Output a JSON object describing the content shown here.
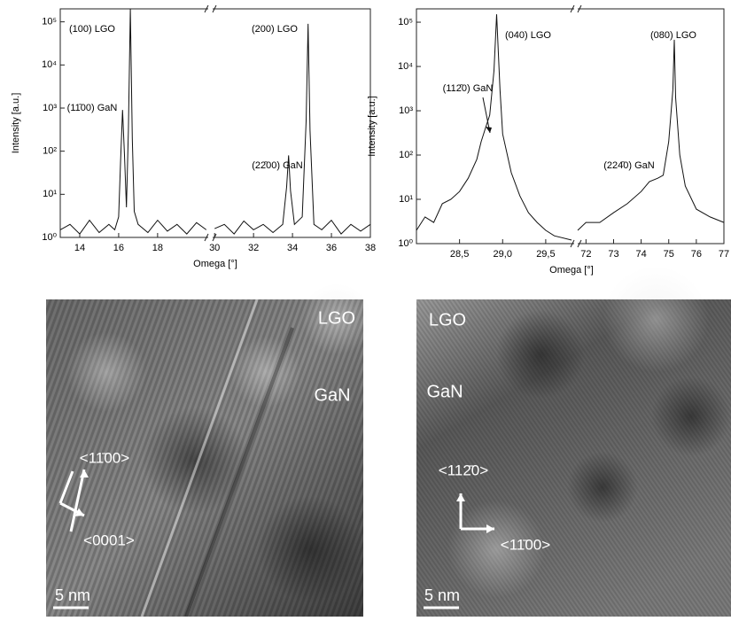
{
  "chart_data": [
    {
      "type": "line",
      "y_label": "Intensity [a.u.]",
      "x_label": "Omega [°]",
      "log_y": true,
      "color": "#111111",
      "xlim": [
        13,
        38
      ],
      "x_break": [
        20.6,
        29.9
      ],
      "ylim": [
        1,
        200000
      ],
      "xticks": [
        14,
        16,
        18,
        30,
        32,
        34,
        36,
        38
      ],
      "yticks": [
        {
          "value": 1,
          "label": "10⁰"
        },
        {
          "value": 10,
          "label": "10¹"
        },
        {
          "value": 100,
          "label": "10²"
        },
        {
          "value": 1000,
          "label": "10³"
        },
        {
          "value": 10000,
          "label": "10⁴"
        },
        {
          "value": 100000,
          "label": "10⁵"
        }
      ],
      "annotations": [
        "(100) LGO",
        "(200) LGO",
        "(11̄00) GaN",
        "(22̄00) GaN"
      ],
      "x": [
        13,
        13.5,
        14,
        14.5,
        15,
        15.5,
        15.8,
        16,
        16.1,
        16.2,
        16.3,
        16.4,
        16.5,
        16.6,
        16.7,
        16.8,
        17,
        17.5,
        18,
        18.5,
        19,
        19.5,
        20,
        20.5,
        30,
        30.5,
        31,
        31.5,
        32,
        32.5,
        33,
        33.5,
        33.7,
        33.8,
        33.9,
        34.1,
        34.5,
        34.7,
        34.8,
        34.9,
        35.1,
        35.5,
        36,
        36.5,
        37,
        37.5,
        38
      ],
      "values": [
        1.5,
        2,
        1.2,
        2.5,
        1.3,
        2,
        1.5,
        3,
        60,
        900,
        80,
        5,
        300,
        200000,
        200,
        4,
        2,
        1.3,
        2.5,
        1.4,
        2,
        1.2,
        2.2,
        1.5,
        1.6,
        2,
        1.2,
        2.4,
        1.5,
        2,
        1.3,
        2,
        15,
        80,
        12,
        2,
        3,
        500,
        90000,
        300,
        2,
        1.5,
        2.5,
        1.2,
        2,
        1.4,
        2
      ]
    },
    {
      "type": "line",
      "y_label": "Intensity [a.u.]",
      "x_label": "Omega [°]",
      "log_y": true,
      "color": "#111111",
      "xlim": [
        28,
        77
      ],
      "x_break": [
        29.83,
        71.7
      ],
      "ylim": [
        1,
        200000
      ],
      "xticks": [
        {
          "value": 28.5,
          "label": "28,5"
        },
        {
          "value": 29,
          "label": "29,0"
        },
        {
          "value": 29.5,
          "label": "29,5"
        },
        72,
        73,
        74,
        75,
        76,
        77
      ],
      "yticks": [
        {
          "value": 1,
          "label": "10⁰"
        },
        {
          "value": 10,
          "label": "10¹"
        },
        {
          "value": 100,
          "label": "10²"
        },
        {
          "value": 1000,
          "label": "10³"
        },
        {
          "value": 10000,
          "label": "10⁴"
        },
        {
          "value": 100000,
          "label": "10⁵"
        }
      ],
      "annotations": [
        "(040) LGO",
        "(080) LGO",
        "(112̄0) GaN",
        "(224̄0) GaN"
      ],
      "x": [
        28,
        28.1,
        28.2,
        28.3,
        28.4,
        28.5,
        28.6,
        28.7,
        28.75,
        28.8,
        28.85,
        28.9,
        28.93,
        28.97,
        29,
        29.1,
        29.2,
        29.3,
        29.4,
        29.5,
        29.6,
        29.8,
        71.7,
        72,
        72.5,
        73,
        73.5,
        74,
        74.3,
        74.6,
        74.8,
        75,
        75.15,
        75.2,
        75.25,
        75.4,
        75.6,
        76,
        76.5,
        77
      ],
      "values": [
        2,
        4,
        3,
        8,
        10,
        15,
        30,
        80,
        200,
        400,
        800,
        8000,
        150000,
        3000,
        300,
        40,
        12,
        5,
        3,
        2,
        1.5,
        1.2,
        2,
        3,
        3,
        5,
        8,
        15,
        25,
        30,
        35,
        200,
        3000,
        40000,
        2000,
        100,
        20,
        6,
        4,
        3
      ]
    }
  ],
  "images": [
    {
      "labels": [
        "LGO",
        "GaN",
        "<11̄00>",
        "<0001>",
        "5 nm"
      ]
    },
    {
      "labels": [
        "LGO",
        "GaN",
        "<112̄0>",
        "<11̄00>",
        "5 nm"
      ]
    }
  ]
}
